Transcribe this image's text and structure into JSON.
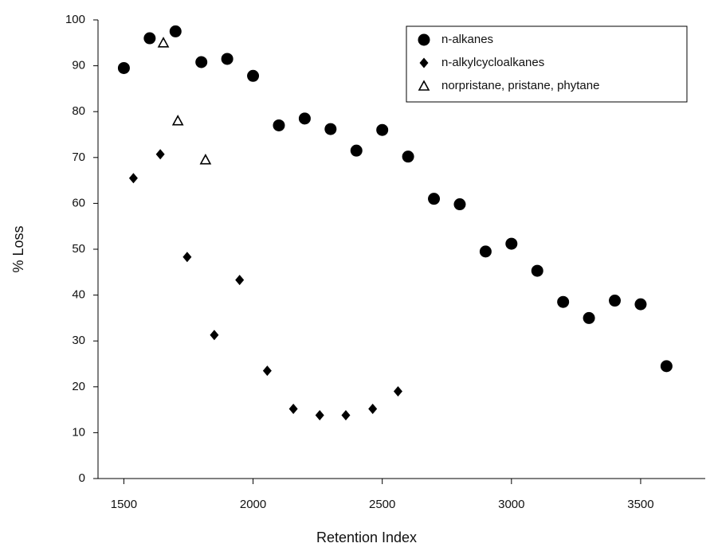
{
  "chart_data": {
    "type": "scatter",
    "x_label": "Retention Index",
    "y_label": "% Loss",
    "xlim": [
      1400,
      3750
    ],
    "ylim": [
      0,
      100
    ],
    "xticks": [
      1500,
      2000,
      2500,
      3000,
      3500
    ],
    "yticks": [
      0,
      10,
      20,
      30,
      40,
      50,
      60,
      70,
      80,
      90,
      100
    ],
    "legend": "upper right",
    "series": [
      {
        "name": "n-alkanes",
        "color": "#000000",
        "marker": "circle",
        "x": [
          1500,
          1600,
          1700,
          1800,
          1900,
          2000,
          2100,
          2200,
          2300,
          2400,
          2500,
          2600,
          2700,
          2800,
          2900,
          3000,
          3100,
          3200,
          3300,
          3400,
          3500,
          3600
        ],
        "values": [
          89.5,
          96,
          97.5,
          90.8,
          91.5,
          87.8,
          77,
          78.5,
          76.2,
          71.5,
          76,
          70.2,
          61,
          59.8,
          49.5,
          51.2,
          45.3,
          38.5,
          35,
          38.8,
          38,
          24.5
        ]
      },
      {
        "name": "n-alkylcycloalkanes",
        "color": "#000000",
        "marker": "diamond",
        "x": [
          1537,
          1641,
          1745,
          1850,
          1948,
          2055,
          2156,
          2258,
          2359,
          2463,
          2561
        ],
        "values": [
          65.5,
          70.7,
          48.3,
          31.3,
          43.3,
          23.5,
          15.2,
          13.8,
          13.8,
          15.2,
          19
        ]
      },
      {
        "name": "norpristane, pristane, phytane",
        "color": "#000000",
        "marker": "triangle",
        "x": [
          1653,
          1709,
          1816
        ],
        "values": [
          95,
          78,
          69.5
        ]
      }
    ]
  }
}
